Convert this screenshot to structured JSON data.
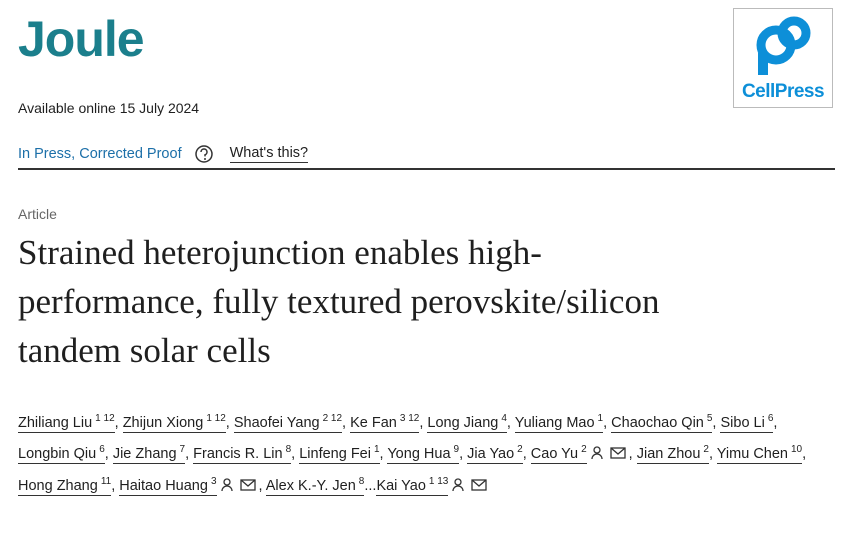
{
  "header": {
    "journal": "Joule",
    "publisher_logo": "CellPress",
    "available": "Available online 15 July 2024",
    "status": "In Press, Corrected Proof",
    "whats_this": "What's this?"
  },
  "article": {
    "type": "Article",
    "title": "Strained heterojunction enables high-performance, fully textured perovskite/silicon tandem solar cells",
    "separator": ",",
    "ellipsis": "...",
    "authors": [
      {
        "name": "Zhiliang Liu",
        "sup": "1 12",
        "corresponding": false
      },
      {
        "name": "Zhijun Xiong",
        "sup": "1 12",
        "corresponding": false
      },
      {
        "name": "Shaofei Yang",
        "sup": "2 12",
        "corresponding": false
      },
      {
        "name": "Ke Fan",
        "sup": "3 12",
        "corresponding": false
      },
      {
        "name": "Long Jiang",
        "sup": "4",
        "corresponding": false
      },
      {
        "name": "Yuliang Mao",
        "sup": "1",
        "corresponding": false
      },
      {
        "name": "Chaochao Qin",
        "sup": "5",
        "corresponding": false
      },
      {
        "name": "Sibo Li",
        "sup": "6",
        "corresponding": false
      },
      {
        "name": "Longbin Qiu",
        "sup": "6",
        "corresponding": false
      },
      {
        "name": "Jie Zhang",
        "sup": "7",
        "corresponding": false
      },
      {
        "name": "Francis R. Lin",
        "sup": "8",
        "corresponding": false
      },
      {
        "name": "Linfeng Fei",
        "sup": "1",
        "corresponding": false
      },
      {
        "name": "Yong Hua",
        "sup": "9",
        "corresponding": false
      },
      {
        "name": "Jia Yao",
        "sup": "2",
        "corresponding": false
      },
      {
        "name": "Cao Yu",
        "sup": "2",
        "corresponding": true
      },
      {
        "name": "Jian Zhou",
        "sup": "2",
        "corresponding": false
      },
      {
        "name": "Yimu Chen",
        "sup": "10",
        "corresponding": false
      },
      {
        "name": "Hong Zhang",
        "sup": "11",
        "corresponding": false
      },
      {
        "name": "Haitao Huang",
        "sup": "3",
        "corresponding": true
      },
      {
        "name": "Alex K.-Y. Jen",
        "sup": "8",
        "corresponding": false
      },
      {
        "name": "Kai Yao",
        "sup": "1 13",
        "corresponding": true
      }
    ]
  }
}
